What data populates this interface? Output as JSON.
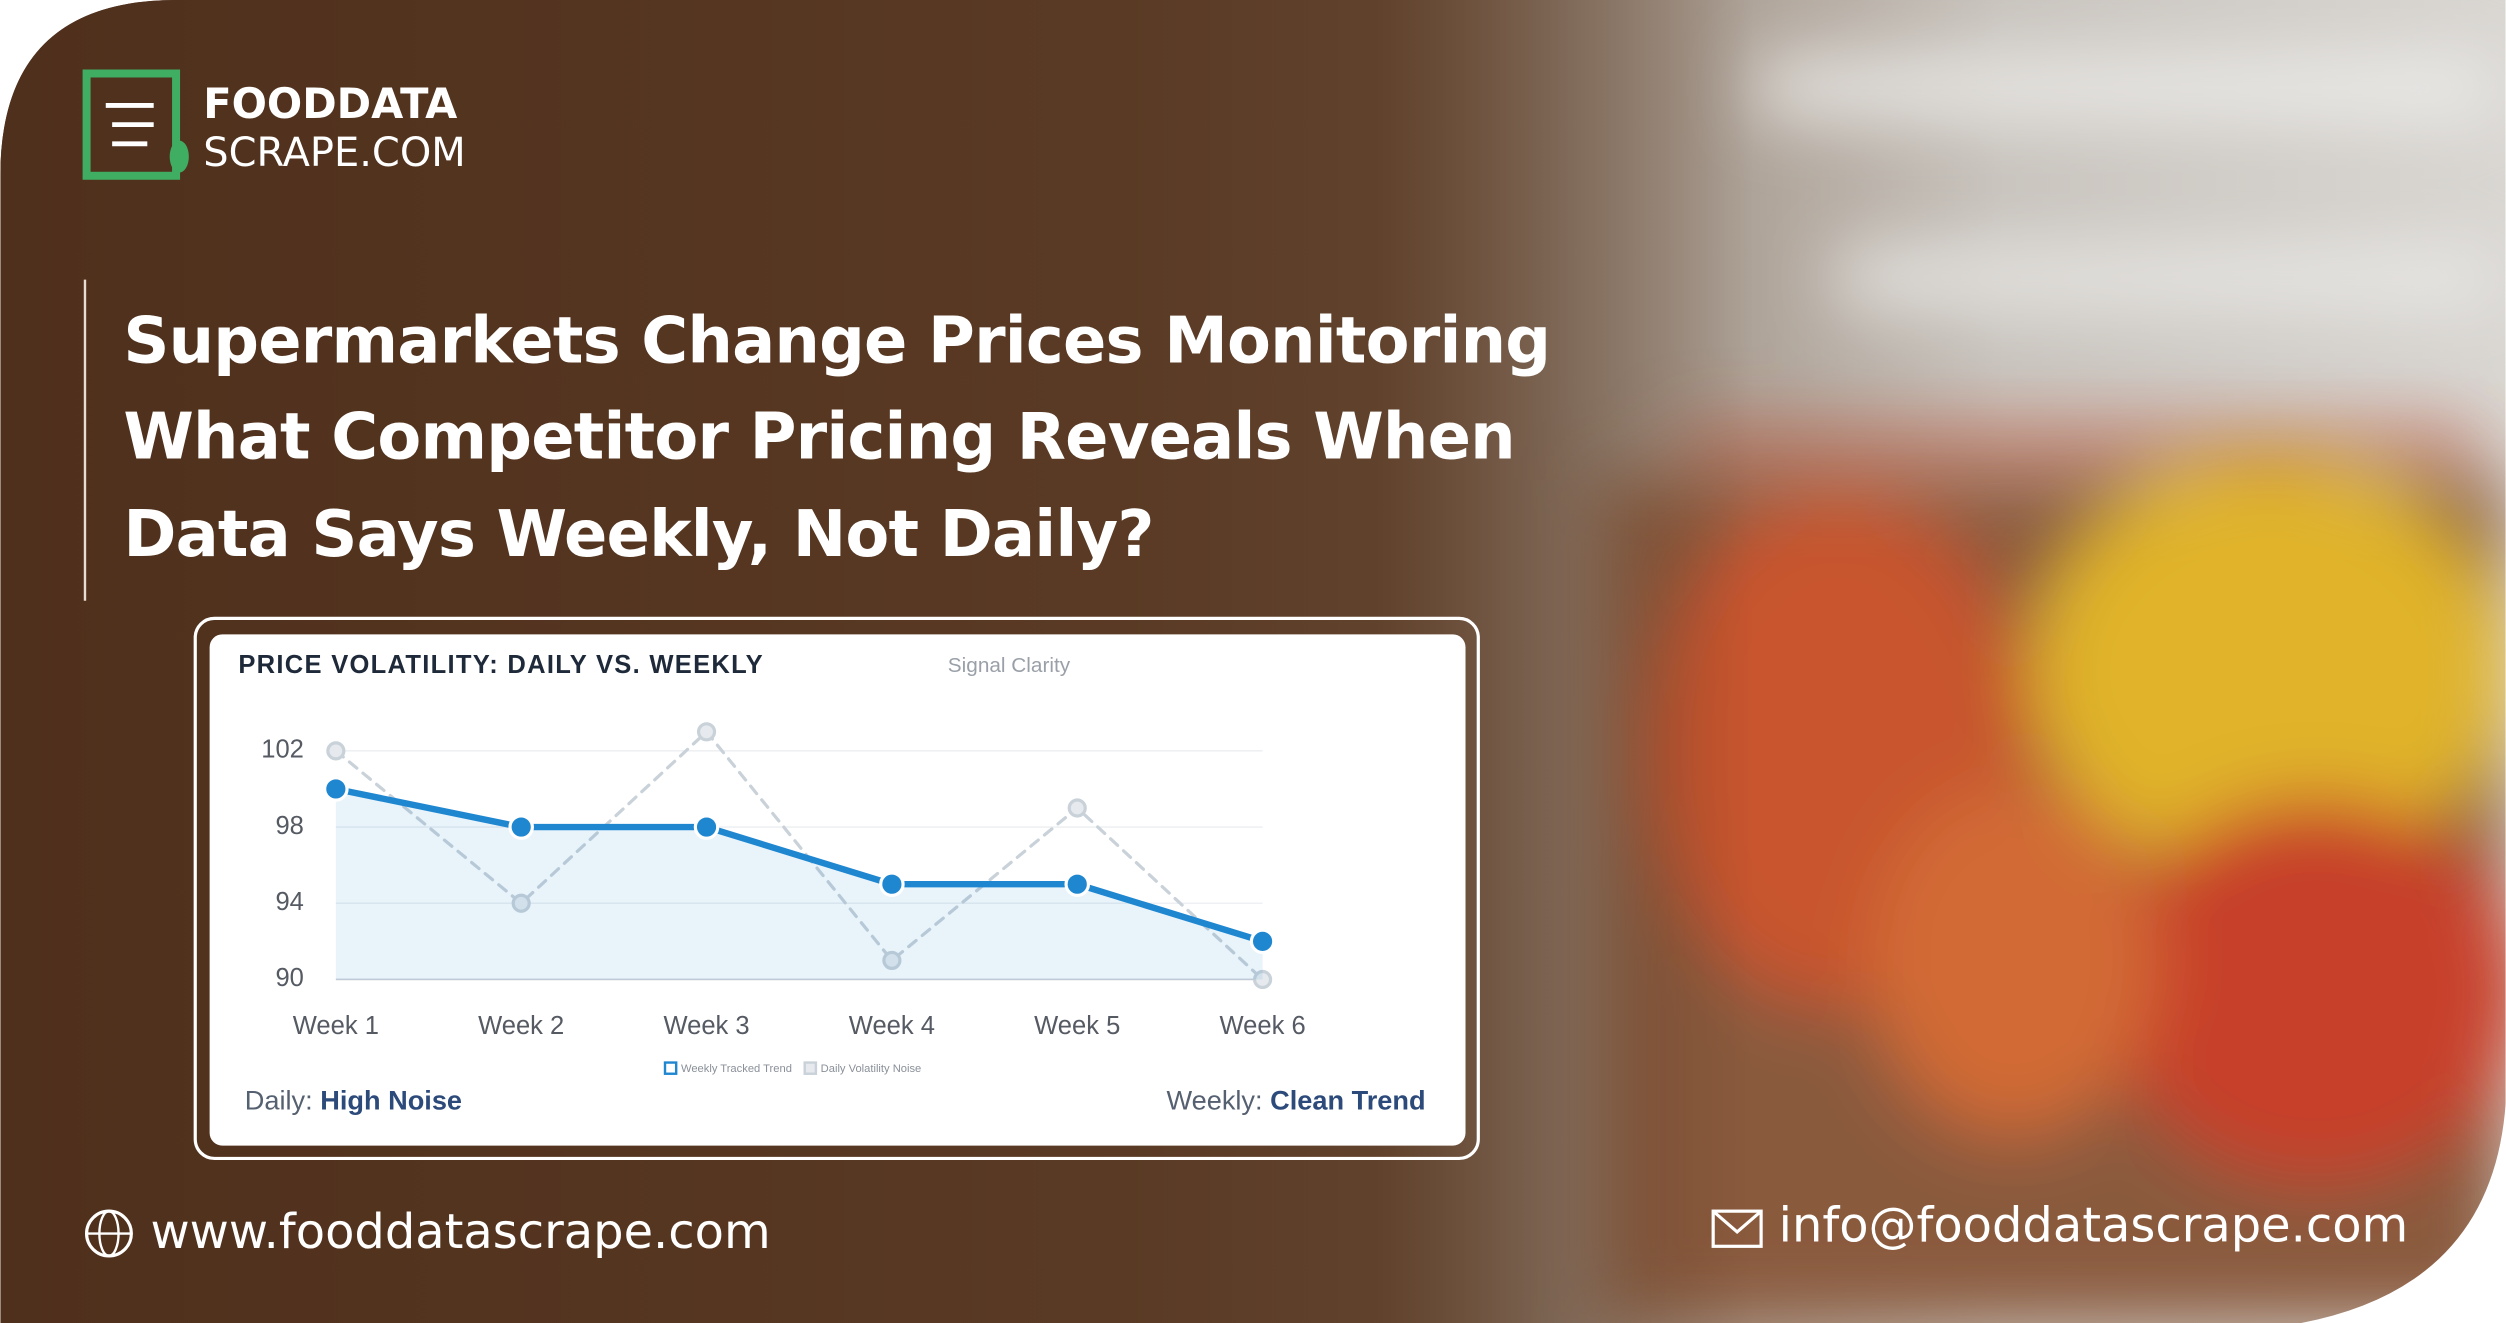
{
  "logo": {
    "line1": "FOODDATA",
    "line2": "SCRAPE.COM"
  },
  "headline": [
    "Supermarkets Change Prices Monitoring",
    "What Competitor Pricing Reveals When",
    "Data Says Weekly, Not Daily?"
  ],
  "chart_data": {
    "type": "line",
    "title": "PRICE VOLATILITY: DAILY VS. WEEKLY",
    "subtitle": "Signal Clarity",
    "categories": [
      "Week 1",
      "Week 2",
      "Week 3",
      "Week 4",
      "Week 5",
      "Week 6"
    ],
    "series": [
      {
        "name": "Weekly Tracked Trend",
        "color": "#1f86d0",
        "dashed": false,
        "area": true,
        "values": [
          100,
          98,
          98,
          95,
          95,
          92
        ]
      },
      {
        "name": "Daily Volatility Noise",
        "color": "#c9d1d9",
        "dashed": true,
        "area": false,
        "values": [
          102,
          94,
          103,
          91,
          99,
          90
        ]
      }
    ],
    "ylim": [
      90,
      103
    ],
    "yticks": [
      90,
      94,
      98,
      102
    ],
    "grid": true,
    "legend": "bottom",
    "annotations": [
      {
        "label": "Daily:",
        "text": "High Noise"
      },
      {
        "label": "Weekly:",
        "text": "Clean Trend"
      }
    ]
  },
  "footer": {
    "website": "www.fooddatascrape.com",
    "email": "info@fooddatascrape.com"
  }
}
